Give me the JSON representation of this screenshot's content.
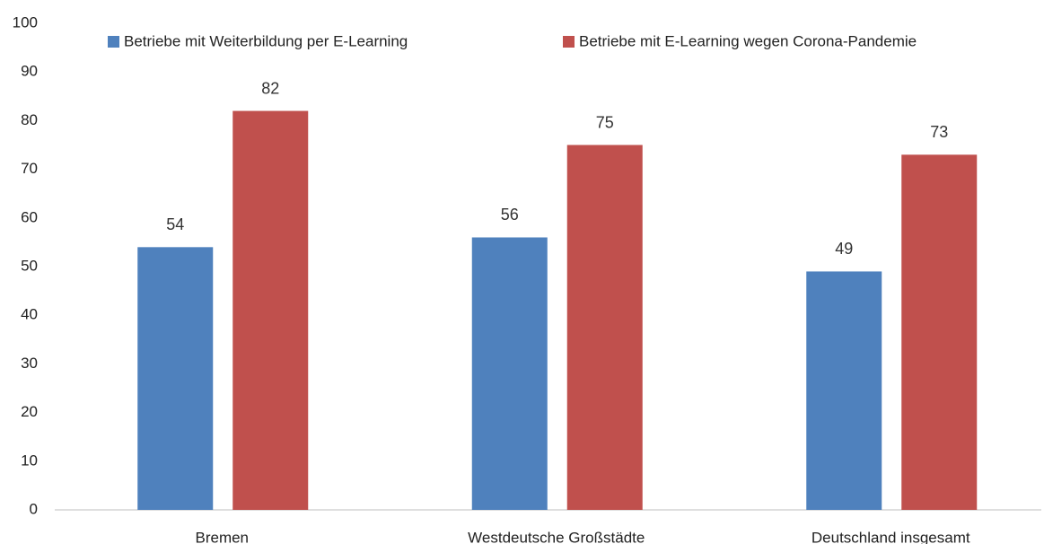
{
  "chart_data": {
    "type": "bar",
    "categories": [
      "Bremen",
      "Westdeutsche Großstädte",
      "Deutschland insgesamt"
    ],
    "series": [
      {
        "name": "Betriebe mit Weiterbildung per E-Learning",
        "color": "#4f81bd",
        "values": [
          54,
          56,
          49
        ]
      },
      {
        "name": "Betriebe mit E-Learning wegen Corona-Pandemie",
        "color": "#c0504d",
        "values": [
          82,
          75,
          73
        ]
      }
    ],
    "ylim": [
      0,
      100
    ],
    "yticks": [
      0,
      10,
      20,
      30,
      40,
      50,
      60,
      70,
      80,
      90,
      100
    ],
    "grid": false,
    "legend": "top"
  }
}
